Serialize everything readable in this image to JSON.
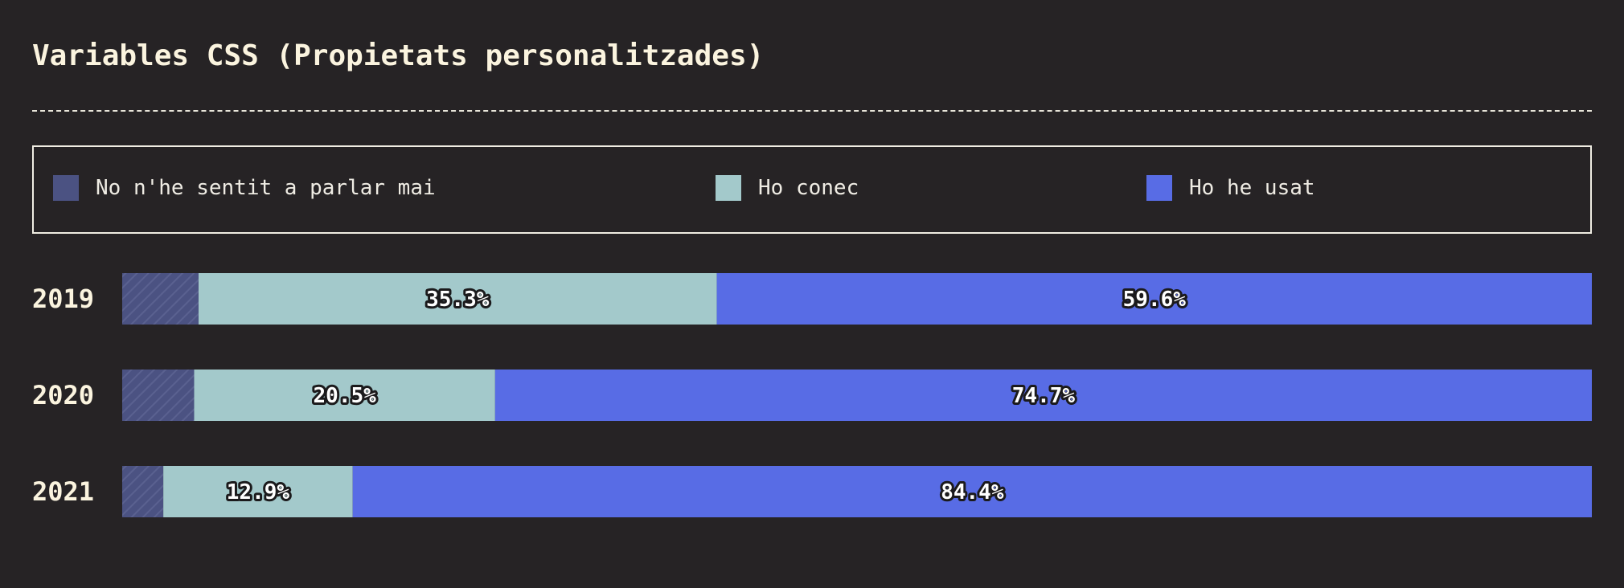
{
  "title": "Variables CSS (Propietats personalitzades)",
  "legend": [
    {
      "label": "No n'he sentit a parlar mai",
      "color": "#4b5282"
    },
    {
      "label": "Ho conec",
      "color": "#a3c9cb"
    },
    {
      "label": "Ho he usat",
      "color": "#586ce5"
    }
  ],
  "chart_data": {
    "type": "bar",
    "orientation": "horizontal",
    "stacked": true,
    "normalized_percent": true,
    "title": "Variables CSS (Propietats personalitzades)",
    "categories": [
      "2019",
      "2020",
      "2021"
    ],
    "series": [
      {
        "name": "No n'he sentit a parlar mai",
        "color": "#4b5282",
        "values": [
          5.2,
          4.9,
          2.8
        ],
        "labels": [
          "",
          "",
          ""
        ]
      },
      {
        "name": "Ho conec",
        "color": "#a3c9cb",
        "values": [
          35.3,
          20.5,
          12.9
        ],
        "labels": [
          "35.3%",
          "20.5%",
          "12.9%"
        ]
      },
      {
        "name": "Ho he usat",
        "color": "#586ce5",
        "values": [
          59.6,
          74.7,
          84.4
        ],
        "labels": [
          "59.6%",
          "74.7%",
          "84.4%"
        ]
      }
    ],
    "xlim": [
      0,
      100
    ],
    "grid": false,
    "legend_position": "top"
  }
}
